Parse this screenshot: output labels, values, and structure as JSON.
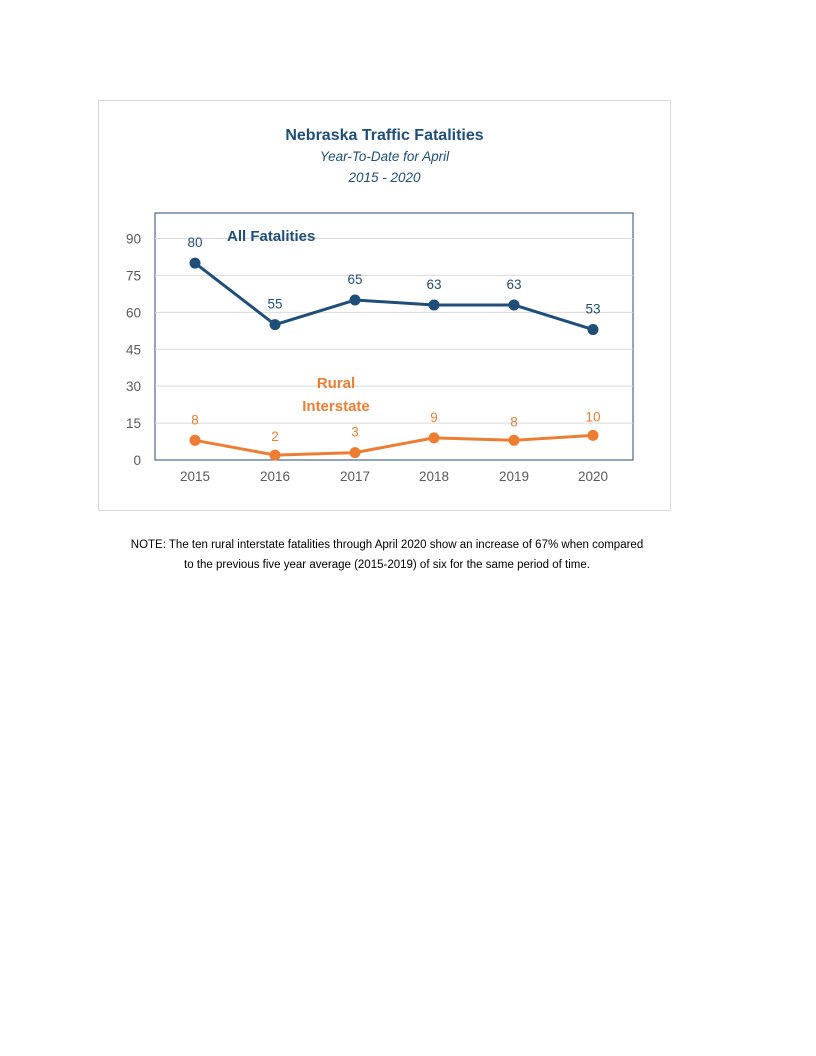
{
  "chart_data": {
    "type": "line",
    "title": "Nebraska Traffic Fatalities",
    "subtitle_lines": [
      "Year-To-Date for April",
      "2015 - 2020"
    ],
    "categories": [
      "2015",
      "2016",
      "2017",
      "2018",
      "2019",
      "2020"
    ],
    "ylim": [
      0,
      90
    ],
    "yticks": [
      "0",
      "15",
      "30",
      "45",
      "60",
      "75",
      "90"
    ],
    "grid": true,
    "series": [
      {
        "name": "All Fatalities",
        "color": "#1f4e79",
        "values": [
          80,
          55,
          65,
          63,
          63,
          53
        ]
      },
      {
        "name": "Rural Interstate",
        "name_lines": [
          "Rural",
          "Interstate"
        ],
        "color": "#ed7d31",
        "values": [
          8,
          2,
          3,
          9,
          8,
          10
        ]
      }
    ]
  },
  "note": {
    "line1": "NOTE:  The ten rural interstate fatalities through April 2020 show an increase of 67% when compared",
    "line2": "to the previous five year average (2015-2019) of six for the same period of time."
  }
}
